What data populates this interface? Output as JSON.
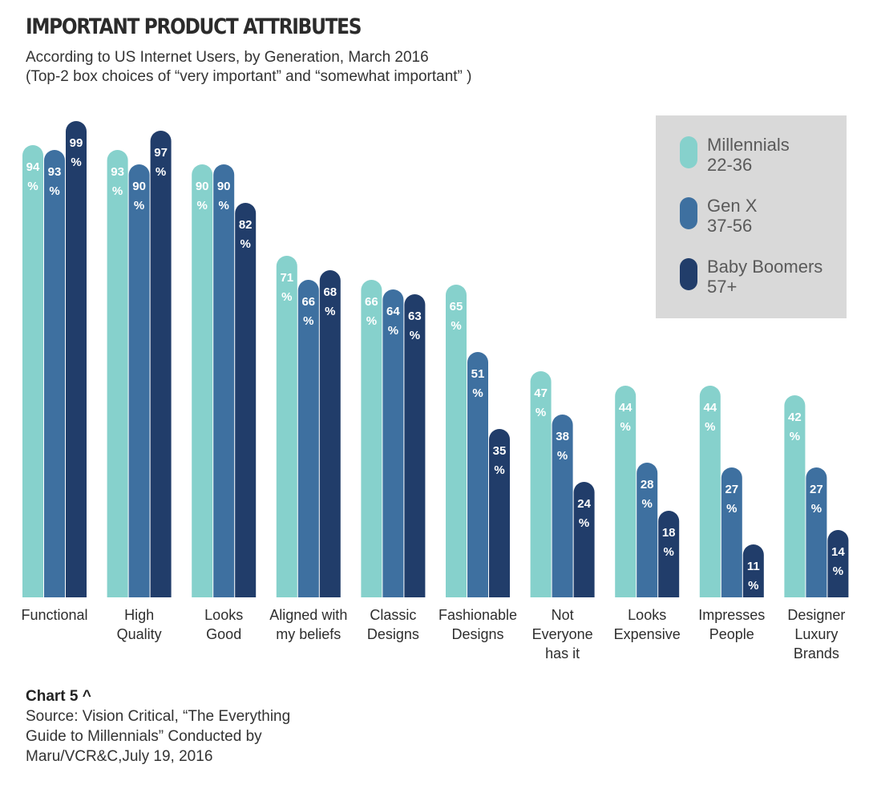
{
  "header": {
    "title": "IMPORTANT PRODUCT ATTRIBUTES",
    "subtitle_line1": "According to US Internet Users, by Generation, March 2016",
    "subtitle_line2": "(Top-2 box choices of “very important” and “somewhat important” )"
  },
  "legend": [
    {
      "name": "Millennials",
      "range": "22-36"
    },
    {
      "name": "Gen X",
      "range": "37-56"
    },
    {
      "name": "Baby Boomers",
      "range": "57+"
    }
  ],
  "colors": {
    "millennials": "#86d1cc",
    "gen_x": "#3e70a0",
    "baby_boomers": "#213d6a",
    "legend_bg": "#d9d9d9"
  },
  "chart_data": {
    "type": "bar",
    "title": "IMPORTANT PRODUCT ATTRIBUTES",
    "categories": [
      [
        "Functional"
      ],
      [
        "High",
        "Quality"
      ],
      [
        "Looks",
        "Good"
      ],
      [
        "Aligned with",
        "my beliefs"
      ],
      [
        "Classic",
        "Designs"
      ],
      [
        "Fashionable",
        "Designs"
      ],
      [
        "Not",
        "Everyone",
        "has it"
      ],
      [
        "Looks",
        "Expensive"
      ],
      [
        "Impresses",
        "People"
      ],
      [
        "Designer",
        "Luxury",
        "Brands"
      ]
    ],
    "series": [
      {
        "name": "Millennials 22-36",
        "values": [
          94,
          93,
          90,
          71,
          66,
          65,
          47,
          44,
          44,
          42
        ]
      },
      {
        "name": "Gen X 37-56",
        "values": [
          93,
          90,
          90,
          66,
          64,
          51,
          38,
          28,
          27,
          27
        ]
      },
      {
        "name": "Baby Boomers 57+",
        "values": [
          99,
          97,
          82,
          68,
          63,
          35,
          24,
          18,
          11,
          14
        ]
      }
    ],
    "value_suffix": "%",
    "ylim": [
      0,
      100
    ],
    "grid": false,
    "legend_position": "top-right"
  },
  "footer": {
    "chart_number": "Chart 5 ^",
    "source_line1": "Source: Vision Critical, “The Everything",
    "source_line2": "Guide to Millennials” Conducted by",
    "source_line3": "Maru/VCR&C,July 19, 2016"
  }
}
